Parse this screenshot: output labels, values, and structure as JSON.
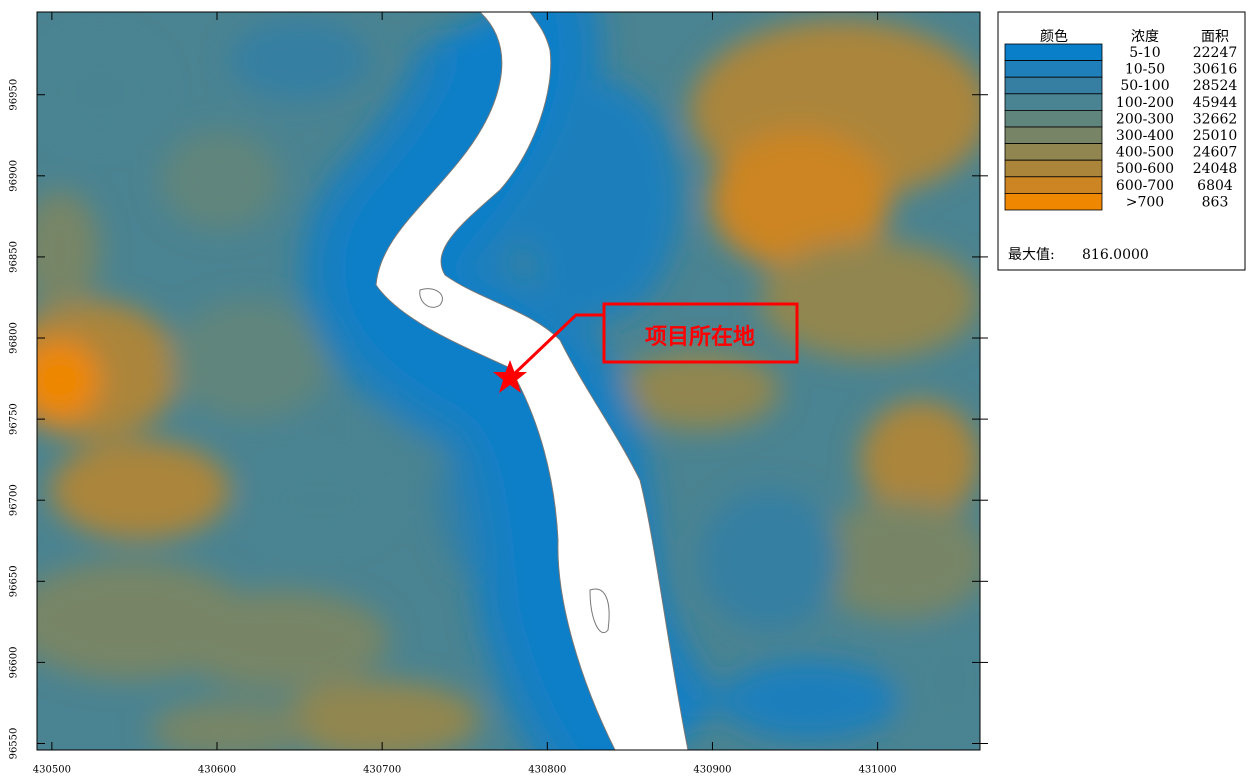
{
  "map": {
    "xlim": [
      430491,
      431062
    ],
    "ylim": [
      96546,
      97001
    ],
    "xticks": [
      430500,
      430600,
      430700,
      430800,
      430900,
      431000
    ],
    "yticks": [
      96550,
      96600,
      96650,
      96700,
      96750,
      96800,
      96850,
      96900,
      96950
    ],
    "annotation": "项目所在地"
  },
  "legend": {
    "headers": [
      "颜色",
      "浓度",
      "面积"
    ],
    "rows": [
      {
        "color": "#0a7fc9",
        "range": "5-10",
        "area": 22247
      },
      {
        "color": "#1f7fbb",
        "range": "10-50",
        "area": 30616
      },
      {
        "color": "#367fa3",
        "range": "50-100",
        "area": 28524
      },
      {
        "color": "#4a8391",
        "range": "100-200",
        "area": 45944
      },
      {
        "color": "#60857c",
        "range": "200-300",
        "area": 32662
      },
      {
        "color": "#778566",
        "range": "300-400",
        "area": 25010
      },
      {
        "color": "#918650",
        "range": "400-500",
        "area": 24607
      },
      {
        "color": "#ab853a",
        "range": "500-600",
        "area": 24048
      },
      {
        "color": "#cc8522",
        "range": "600-700",
        "area": 6804
      },
      {
        "color": "#ef8700",
        "range": ">700",
        "area": 863
      }
    ],
    "max_label": "最大值:",
    "max_value": {
      "value": 816,
      "label": "816.0000"
    }
  }
}
